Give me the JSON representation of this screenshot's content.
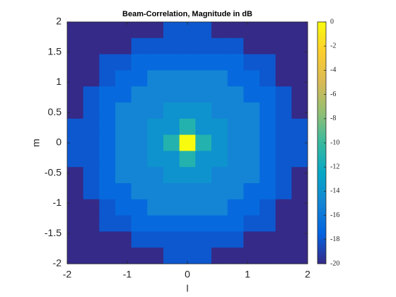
{
  "chart_data": {
    "type": "heatmap",
    "title": "Beam-Correlation, Magnitude in dB",
    "xlabel": "l",
    "ylabel": "m",
    "xlim": [
      -2,
      2
    ],
    "ylim": [
      -2,
      2
    ],
    "xticks": [
      -2,
      -1,
      0,
      1,
      2
    ],
    "yticks": [
      -2,
      -1.5,
      -1,
      -0.5,
      0,
      0.5,
      1,
      1.5,
      2
    ],
    "clim": [
      -20,
      0
    ],
    "cticks": [
      0,
      -2,
      -4,
      -6,
      -8,
      -10,
      -12,
      -14,
      -16,
      -18,
      -20
    ],
    "colormap": [
      "#352a87",
      "#0363e1",
      "#1485d4",
      "#06a7c6",
      "#38b99e",
      "#92bf73",
      "#d9ba56",
      "#fcce2e",
      "#f9fb0e"
    ],
    "values": [
      [
        -20,
        -20,
        -20,
        -20,
        -20,
        -20,
        -18,
        -18,
        -18,
        -20,
        -20,
        -20,
        -20,
        -20,
        -20
      ],
      [
        -20,
        -20,
        -20,
        -20,
        -18,
        -18,
        -18,
        -18,
        -18,
        -18,
        -18,
        -20,
        -20,
        -20,
        -20
      ],
      [
        -20,
        -20,
        -18,
        -18,
        -17,
        -17,
        -17,
        -17,
        -17,
        -17,
        -17,
        -18,
        -18,
        -20,
        -20
      ],
      [
        -20,
        -20,
        -18,
        -17,
        -17,
        -15,
        -15,
        -15,
        -15,
        -15,
        -17,
        -17,
        -18,
        -20,
        -20
      ],
      [
        -20,
        -18,
        -17,
        -17,
        -15,
        -15,
        -15,
        -15,
        -15,
        -15,
        -15,
        -17,
        -17,
        -18,
        -20
      ],
      [
        -20,
        -18,
        -17,
        -15,
        -15,
        -15,
        -14,
        -14,
        -14,
        -15,
        -15,
        -15,
        -17,
        -18,
        -20
      ],
      [
        -18,
        -18,
        -17,
        -15,
        -15,
        -14,
        -14,
        -11,
        -14,
        -14,
        -15,
        -15,
        -17,
        -18,
        -18
      ],
      [
        -18,
        -18,
        -17,
        -15,
        -15,
        -14,
        -11,
        0,
        -11,
        -14,
        -15,
        -15,
        -17,
        -18,
        -18
      ],
      [
        -18,
        -18,
        -17,
        -15,
        -15,
        -14,
        -14,
        -11,
        -14,
        -14,
        -15,
        -15,
        -17,
        -18,
        -18
      ],
      [
        -20,
        -18,
        -17,
        -15,
        -15,
        -15,
        -14,
        -14,
        -14,
        -15,
        -15,
        -15,
        -17,
        -18,
        -20
      ],
      [
        -20,
        -18,
        -17,
        -17,
        -15,
        -15,
        -15,
        -15,
        -15,
        -15,
        -15,
        -17,
        -17,
        -18,
        -20
      ],
      [
        -20,
        -20,
        -18,
        -17,
        -17,
        -15,
        -15,
        -15,
        -15,
        -15,
        -17,
        -17,
        -18,
        -20,
        -20
      ],
      [
        -20,
        -20,
        -18,
        -18,
        -17,
        -17,
        -17,
        -17,
        -17,
        -17,
        -17,
        -18,
        -18,
        -20,
        -20
      ],
      [
        -20,
        -20,
        -20,
        -20,
        -18,
        -18,
        -18,
        -18,
        -18,
        -18,
        -18,
        -20,
        -20,
        -20,
        -20
      ],
      [
        -20,
        -20,
        -20,
        -20,
        -20,
        -20,
        -18,
        -18,
        -18,
        -20,
        -20,
        -20,
        -20,
        -20,
        -20
      ]
    ]
  }
}
